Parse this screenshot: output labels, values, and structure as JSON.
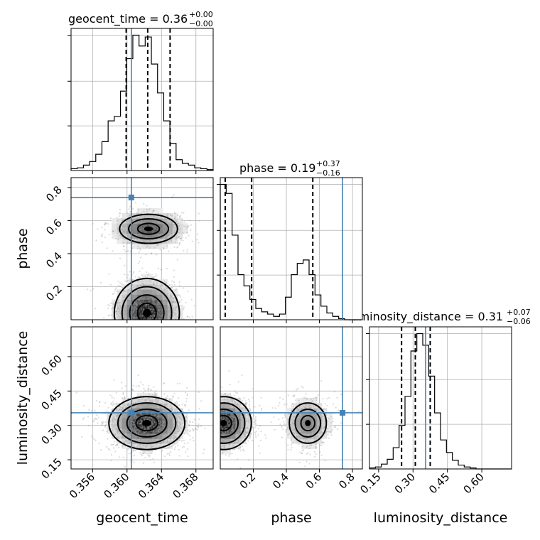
{
  "chart_data": {
    "type": "corner",
    "parameters": [
      "geocent_time",
      "phase",
      "luminosity_distance"
    ],
    "truths": {
      "geocent_time": 0.3605,
      "phase": 0.74,
      "luminosity_distance": 0.355
    },
    "ranges": {
      "geocent_time": [
        0.3535,
        0.37
      ],
      "phase": [
        0.0,
        0.86
      ],
      "luminosity_distance": [
        0.11,
        0.73
      ]
    },
    "titles": {
      "geocent_time": {
        "label": "geocent_time = 0.36",
        "plus": "+0.00",
        "minus": "−0.00"
      },
      "phase": {
        "label": "phase = 0.19",
        "plus": "+0.37",
        "minus": "−0.16"
      },
      "luminosity_distance": {
        "label": "luminosity_distance = 0.31",
        "plus": "+0.07",
        "minus": "−0.06"
      }
    },
    "axis_labels": {
      "geocent_time": "geocent_time",
      "phase": "phase",
      "luminosity_distance": "luminosity_distance"
    },
    "ticks": {
      "geocent_time": {
        "values": [
          0.356,
          0.36,
          0.364,
          0.368
        ],
        "labels": [
          "0.356",
          "0.360",
          "0.364",
          "0.368"
        ]
      },
      "phase": {
        "values": [
          0.2,
          0.4,
          0.6,
          0.8
        ],
        "labels": [
          "0.2",
          "0.4",
          "0.6",
          "0.8"
        ]
      },
      "luminosity_distance": {
        "values": [
          0.15,
          0.3,
          0.45,
          0.6
        ],
        "labels": [
          "0.15",
          "0.30",
          "0.45",
          "0.60"
        ]
      }
    },
    "quantiles": {
      "geocent_time": [
        0.3599,
        0.3624,
        0.365
      ],
      "phase": [
        0.03,
        0.19,
        0.56
      ],
      "luminosity_distance": [
        0.25,
        0.31,
        0.375
      ]
    },
    "histograms": {
      "geocent_time": {
        "range": [
          0.3535,
          0.37
        ],
        "counts": [
          2,
          3,
          6,
          10,
          18,
          32,
          55,
          60,
          88,
          124,
          150,
          138,
          148,
          118,
          86,
          55,
          30,
          12,
          8,
          6,
          3,
          2,
          1
        ]
      },
      "phase": {
        "range": [
          0.0,
          0.86
        ],
        "counts": [
          120,
          112,
          75,
          40,
          30,
          18,
          10,
          7,
          5,
          3,
          5,
          20,
          40,
          50,
          53,
          40,
          22,
          12,
          6,
          3,
          1,
          0,
          0,
          0
        ]
      },
      "luminosity_distance": {
        "range": [
          0.11,
          0.73
        ],
        "counts": [
          1,
          2,
          5,
          10,
          22,
          45,
          75,
          122,
          140,
          128,
          96,
          58,
          30,
          17,
          9,
          4,
          2,
          1,
          0,
          0,
          0,
          0,
          0,
          0
        ]
      }
    },
    "density_modes": {
      "phase_vs_geocent_time": [
        {
          "x": 0.3623,
          "y": 0.04,
          "sx": 0.0018,
          "sy": 0.1,
          "w": 0.68
        },
        {
          "x": 0.3625,
          "y": 0.55,
          "sx": 0.0021,
          "sy": 0.055,
          "w": 0.32
        }
      ],
      "luminosity_distance_vs_geocent_time": [
        {
          "x": 0.3623,
          "y": 0.31,
          "sx": 0.0021,
          "sy": 0.055,
          "w": 1.0
        }
      ],
      "luminosity_distance_vs_phase": [
        {
          "x": 0.02,
          "y": 0.31,
          "sx": 0.08,
          "sy": 0.055,
          "w": 0.68
        },
        {
          "x": 0.53,
          "y": 0.31,
          "sx": 0.07,
          "sy": 0.055,
          "w": 0.32
        }
      ]
    }
  }
}
